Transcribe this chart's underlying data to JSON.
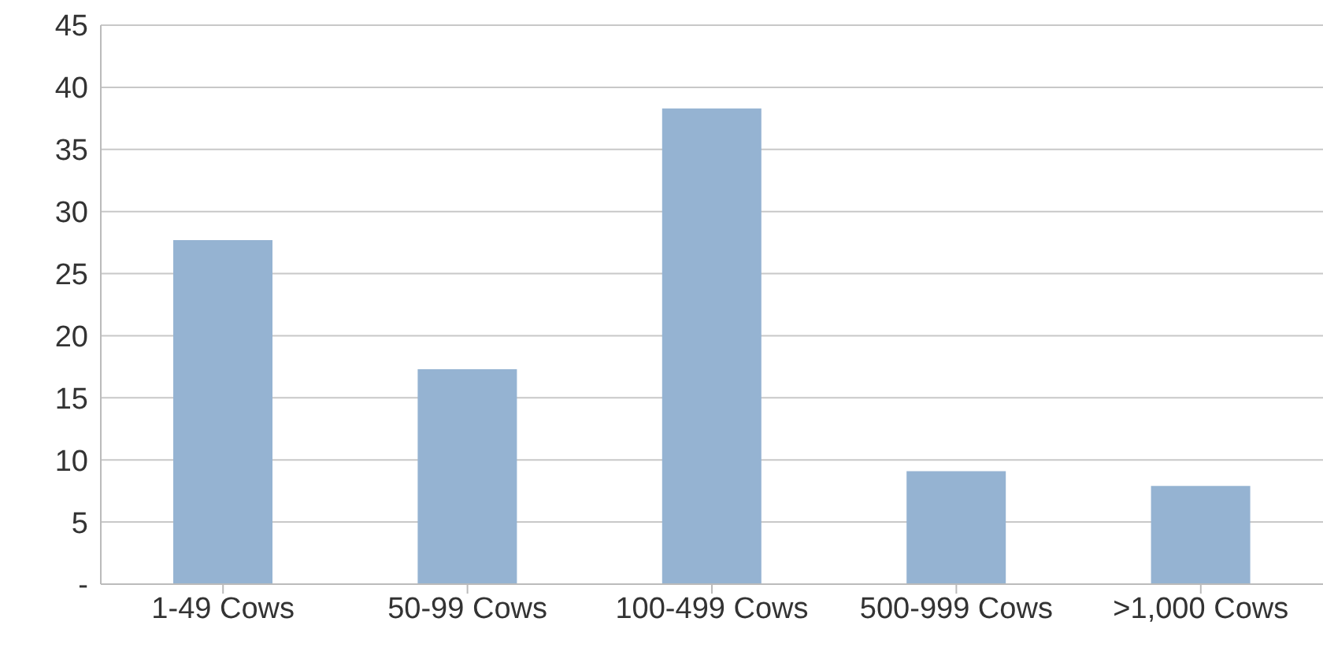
{
  "chart_data": {
    "type": "bar",
    "categories": [
      "1-49 Cows",
      "50-99 Cows",
      "100-499 Cows",
      "500-999 Cows",
      ">1,000 Cows"
    ],
    "values": [
      27.7,
      17.3,
      38.3,
      9.1,
      7.9
    ],
    "color": "#95b3d2",
    "ylim": [
      0,
      45
    ],
    "yticks": [
      {
        "value": 0,
        "label": "-"
      },
      5,
      10,
      15,
      20,
      25,
      30,
      35,
      40,
      45
    ],
    "grid": "y"
  }
}
